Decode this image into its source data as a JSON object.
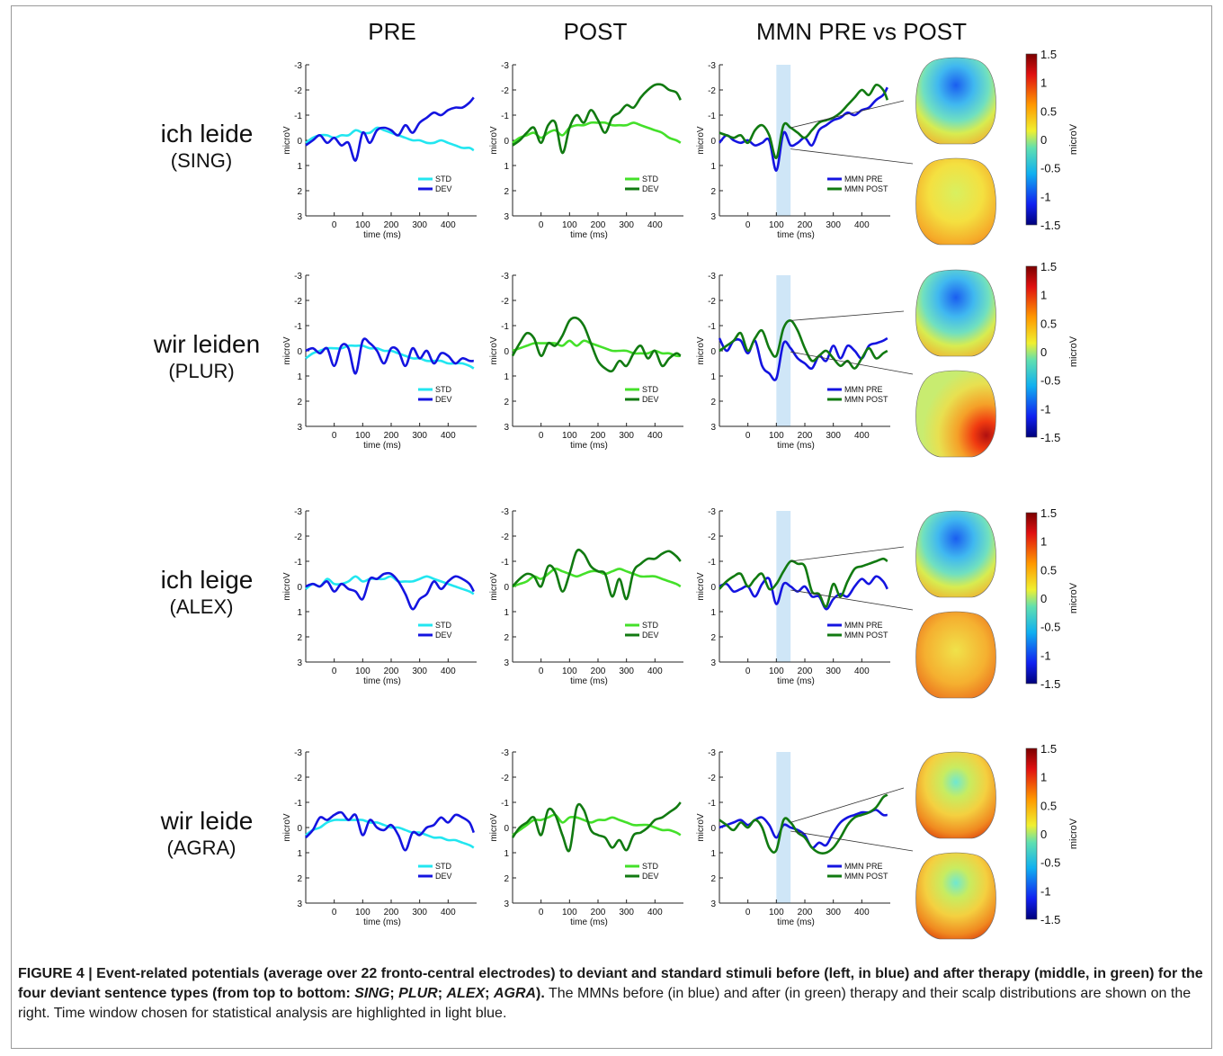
{
  "headers": {
    "pre": "PRE",
    "post": "POST",
    "mmn": "MMN PRE vs POST"
  },
  "rows": [
    {
      "label": "ich leide",
      "sub": "(SING)"
    },
    {
      "label": "wir leiden",
      "sub": "(PLUR)"
    },
    {
      "label": "ich leige",
      "sub": "(ALEX)"
    },
    {
      "label": "wir leide",
      "sub": "(AGRA)"
    }
  ],
  "axes": {
    "y_ticks": [
      "-3",
      "-2",
      "-1",
      "0",
      "1",
      "2",
      "3"
    ],
    "x_ticks": [
      "0",
      "100",
      "200",
      "300",
      "400"
    ],
    "xlabel": "time (ms)",
    "ylabel": "microV"
  },
  "legends": {
    "pre": [
      "STD",
      "DEV"
    ],
    "post": [
      "STD",
      "DEV"
    ],
    "mmn": [
      "MMN PRE",
      "MMN POST"
    ]
  },
  "colorbar": {
    "label": "microV",
    "ticks": [
      "1.5",
      "1",
      "0.5",
      "0",
      "-0.5",
      "-1",
      "-1.5"
    ]
  },
  "colors": {
    "std_pre": "#22e6f0",
    "dev_pre": "#1414e0",
    "std_post": "#44e02a",
    "dev_post": "#117a11",
    "window": "#cfe6f7"
  },
  "chart_data": {
    "type": "line",
    "xlim": [
      -100,
      500
    ],
    "ylim": [
      -3,
      3
    ],
    "y_inverted": true,
    "highlight_window_ms": [
      [
        100,
        150
      ],
      [
        100,
        150
      ],
      [
        100,
        150
      ],
      [
        100,
        150
      ]
    ],
    "x": [
      -100,
      -75,
      -50,
      -25,
      0,
      25,
      50,
      75,
      100,
      125,
      150,
      175,
      200,
      225,
      250,
      275,
      300,
      325,
      350,
      375,
      400,
      425,
      450,
      475,
      490
    ],
    "panels": [
      {
        "pre": [
          {
            "name": "STD",
            "values": [
              0.1,
              -0.1,
              -0.2,
              -0.2,
              -0.1,
              -0.2,
              -0.2,
              -0.4,
              -0.3,
              -0.3,
              -0.5,
              -0.4,
              -0.3,
              -0.2,
              -0.1,
              0.0,
              0.0,
              0.1,
              0.1,
              0.0,
              0.1,
              0.2,
              0.3,
              0.3,
              0.4
            ]
          },
          {
            "name": "DEV",
            "values": [
              0.2,
              0.0,
              -0.2,
              0.1,
              -0.1,
              0.2,
              0.1,
              0.8,
              -0.3,
              0.1,
              -0.4,
              -0.5,
              -0.4,
              -0.2,
              -0.6,
              -0.3,
              -0.7,
              -0.9,
              -1.1,
              -1.0,
              -1.2,
              -1.3,
              -1.3,
              -1.5,
              -1.7
            ]
          }
        ],
        "post": [
          {
            "name": "STD",
            "values": [
              0.1,
              -0.1,
              -0.2,
              -0.3,
              -0.1,
              -0.3,
              -0.4,
              -0.2,
              -0.5,
              -0.6,
              -0.6,
              -0.7,
              -0.7,
              -0.7,
              -0.6,
              -0.6,
              -0.6,
              -0.7,
              -0.6,
              -0.5,
              -0.4,
              -0.3,
              -0.1,
              0.0,
              0.1
            ]
          },
          {
            "name": "DEV",
            "values": [
              0.2,
              0.0,
              -0.3,
              -0.5,
              0.1,
              -0.6,
              -0.7,
              0.5,
              -0.5,
              -1.0,
              -0.7,
              -1.2,
              -0.8,
              -0.3,
              -0.9,
              -1.1,
              -1.4,
              -1.3,
              -1.7,
              -2.0,
              -2.2,
              -2.2,
              -2.0,
              -1.9,
              -1.6
            ]
          }
        ],
        "mmn": [
          {
            "name": "MMN PRE",
            "values": [
              0.1,
              -0.2,
              0.0,
              0.1,
              0.0,
              0.2,
              0.1,
              0.0,
              1.2,
              -0.3,
              0.2,
              0.1,
              -0.1,
              0.2,
              -0.4,
              -0.6,
              -0.8,
              -0.9,
              -1.1,
              -1.0,
              -1.2,
              -1.3,
              -1.6,
              -1.8,
              -2.1
            ]
          },
          {
            "name": "MMN POST",
            "values": [
              -0.3,
              -0.2,
              -0.1,
              -0.2,
              0.1,
              -0.4,
              -0.6,
              -0.2,
              0.7,
              -0.6,
              -0.5,
              -0.3,
              -0.1,
              -0.4,
              -0.7,
              -0.8,
              -0.9,
              -1.1,
              -1.4,
              -1.7,
              -2.0,
              -1.8,
              -2.2,
              -2.0,
              -1.6
            ]
          }
        ]
      },
      {
        "pre": [
          {
            "name": "STD",
            "values": [
              0.3,
              0.1,
              0.0,
              -0.1,
              -0.1,
              -0.1,
              -0.2,
              -0.2,
              -0.2,
              -0.1,
              -0.1,
              0.0,
              0.0,
              0.1,
              0.2,
              0.3,
              0.3,
              0.4,
              0.4,
              0.4,
              0.5,
              0.5,
              0.5,
              0.6,
              0.7
            ]
          },
          {
            "name": "DEV",
            "values": [
              0.0,
              -0.1,
              0.1,
              -0.1,
              0.6,
              -0.2,
              -0.1,
              0.9,
              -0.4,
              -0.3,
              0.0,
              0.5,
              -0.1,
              0.0,
              0.6,
              -0.1,
              0.3,
              0.0,
              0.5,
              0.1,
              0.2,
              0.5,
              0.3,
              0.4,
              0.4
            ]
          }
        ],
        "post": [
          {
            "name": "STD",
            "values": [
              0.0,
              -0.1,
              -0.2,
              -0.3,
              -0.3,
              -0.3,
              -0.3,
              -0.2,
              -0.4,
              -0.2,
              -0.4,
              -0.3,
              -0.2,
              -0.1,
              0.0,
              0.0,
              0.0,
              0.1,
              0.1,
              0.1,
              0.0,
              0.1,
              0.1,
              0.2,
              0.2
            ]
          },
          {
            "name": "DEV",
            "values": [
              0.2,
              -0.3,
              -0.7,
              -0.5,
              0.2,
              -0.3,
              -0.2,
              -0.6,
              -1.2,
              -1.3,
              -1.0,
              -0.3,
              0.4,
              0.7,
              0.8,
              0.4,
              0.6,
              0.1,
              -0.2,
              0.3,
              0.0,
              0.6,
              0.3,
              0.1,
              0.2
            ]
          }
        ],
        "mmn": [
          {
            "name": "MMN PRE",
            "values": [
              -0.5,
              0.0,
              -0.4,
              -0.4,
              0.1,
              -0.4,
              0.6,
              0.9,
              1.1,
              -0.3,
              -0.1,
              0.3,
              0.5,
              0.7,
              0.2,
              0.4,
              -0.2,
              0.3,
              -0.2,
              0.0,
              0.3,
              -0.2,
              -0.3,
              -0.4,
              -0.5
            ]
          },
          {
            "name": "MMN POST",
            "values": [
              0.0,
              -0.2,
              -0.4,
              -0.7,
              0.0,
              -0.5,
              -0.8,
              -0.1,
              0.2,
              -0.9,
              -1.2,
              -0.8,
              -0.1,
              0.4,
              0.2,
              0.0,
              0.3,
              0.6,
              0.4,
              0.7,
              0.3,
              -0.1,
              0.3,
              0.1,
              0.0
            ]
          }
        ]
      },
      {
        "pre": [
          {
            "name": "STD",
            "values": [
              0.1,
              -0.1,
              0.0,
              -0.3,
              -0.1,
              -0.1,
              -0.2,
              -0.4,
              -0.2,
              -0.3,
              -0.3,
              -0.3,
              -0.4,
              -0.2,
              -0.2,
              -0.2,
              -0.3,
              -0.4,
              -0.3,
              -0.2,
              -0.1,
              0.0,
              0.1,
              0.2,
              0.3
            ]
          },
          {
            "name": "DEV",
            "values": [
              0.0,
              -0.1,
              0.0,
              -0.2,
              0.2,
              -0.1,
              0.1,
              0.2,
              0.5,
              -0.3,
              -0.3,
              -0.5,
              -0.5,
              -0.2,
              0.3,
              0.9,
              0.5,
              0.3,
              -0.2,
              0.1,
              -0.2,
              -0.4,
              -0.3,
              -0.1,
              0.2
            ]
          }
        ],
        "post": [
          {
            "name": "STD",
            "values": [
              0.0,
              -0.1,
              -0.2,
              -0.4,
              -0.3,
              -0.5,
              -0.7,
              -0.6,
              -0.5,
              -0.4,
              -0.5,
              -0.6,
              -0.6,
              -0.5,
              -0.6,
              -0.7,
              -0.6,
              -0.5,
              -0.4,
              -0.4,
              -0.4,
              -0.3,
              -0.2,
              -0.1,
              0.0
            ]
          },
          {
            "name": "DEV",
            "values": [
              0.0,
              -0.3,
              -0.5,
              -0.4,
              0.0,
              -0.8,
              -0.6,
              0.2,
              -0.5,
              -1.4,
              -1.3,
              -0.8,
              -0.6,
              -0.5,
              0.4,
              -0.3,
              0.5,
              -0.6,
              -0.9,
              -1.1,
              -1.1,
              -1.3,
              -1.4,
              -1.2,
              -1.0
            ]
          }
        ],
        "mmn": [
          {
            "name": "MMN PRE",
            "values": [
              0.0,
              -0.1,
              0.2,
              0.1,
              0.0,
              0.4,
              -0.1,
              -0.3,
              0.7,
              -0.1,
              0.0,
              0.2,
              0.0,
              0.4,
              0.4,
              0.9,
              0.5,
              0.3,
              0.4,
              0.0,
              -0.3,
              -0.1,
              -0.4,
              -0.2,
              0.1
            ]
          },
          {
            "name": "MMN POST",
            "values": [
              0.1,
              -0.2,
              -0.4,
              -0.5,
              0.0,
              -0.3,
              -0.5,
              0.1,
              -0.1,
              -0.6,
              -1.0,
              -0.9,
              -0.8,
              0.2,
              0.3,
              0.8,
              -0.1,
              0.4,
              -0.2,
              -0.7,
              -0.8,
              -0.9,
              -1.0,
              -1.1,
              -1.0
            ]
          }
        ]
      },
      {
        "pre": [
          {
            "name": "STD",
            "values": [
              0.3,
              0.1,
              0.0,
              -0.2,
              -0.3,
              -0.3,
              -0.3,
              -0.3,
              -0.3,
              -0.2,
              -0.2,
              -0.1,
              0.0,
              0.0,
              0.1,
              0.2,
              0.2,
              0.3,
              0.4,
              0.4,
              0.5,
              0.5,
              0.6,
              0.7,
              0.8
            ]
          },
          {
            "name": "DEV",
            "values": [
              0.4,
              0.1,
              -0.4,
              -0.3,
              -0.5,
              -0.6,
              -0.3,
              -0.5,
              0.3,
              -0.3,
              0.0,
              0.1,
              -0.1,
              0.3,
              0.9,
              0.2,
              0.3,
              0.0,
              -0.1,
              -0.4,
              -0.2,
              -0.5,
              -0.4,
              -0.2,
              0.2
            ]
          }
        ],
        "post": [
          {
            "name": "STD",
            "values": [
              0.3,
              0.1,
              -0.1,
              -0.3,
              -0.3,
              -0.4,
              -0.5,
              -0.2,
              -0.4,
              -0.4,
              -0.3,
              -0.2,
              -0.3,
              -0.3,
              -0.4,
              -0.3,
              -0.2,
              -0.1,
              -0.1,
              -0.1,
              0.0,
              0.1,
              0.1,
              0.2,
              0.3
            ]
          },
          {
            "name": "DEV",
            "values": [
              0.4,
              0.0,
              -0.2,
              -0.4,
              0.3,
              -0.7,
              -0.5,
              0.3,
              0.9,
              -0.8,
              -0.7,
              0.1,
              0.3,
              0.4,
              0.8,
              0.5,
              0.9,
              0.3,
              0.2,
              0.0,
              -0.3,
              -0.4,
              -0.6,
              -0.8,
              -1.0
            ]
          }
        ],
        "mmn": [
          {
            "name": "MMN PRE",
            "values": [
              0.0,
              -0.1,
              -0.2,
              -0.3,
              -0.1,
              -0.3,
              -0.4,
              -0.1,
              0.4,
              -0.1,
              0.0,
              0.1,
              0.3,
              0.8,
              0.6,
              0.7,
              0.2,
              -0.2,
              -0.4,
              -0.5,
              -0.6,
              -0.6,
              -0.7,
              -0.5,
              -0.5
            ]
          },
          {
            "name": "MMN POST",
            "values": [
              -0.3,
              -0.1,
              0.1,
              -0.2,
              0.0,
              -0.3,
              0.0,
              0.8,
              0.9,
              -0.3,
              -0.2,
              0.2,
              0.4,
              0.8,
              1.0,
              1.0,
              0.8,
              0.4,
              -0.1,
              -0.4,
              -0.5,
              -0.6,
              -0.8,
              -1.2,
              -1.3
            ]
          }
        ]
      }
    ]
  },
  "caption": {
    "label": "FIGURE 4",
    "bold_lead": "Event-related potentials (average over 22 fronto-central electrodes) to deviant and standard stimuli before (left, in blue) and after therapy (middle, in green) for the four deviant sentence types (from top to bottom: ",
    "t1": "SING",
    "sep1": "; ",
    "t2": "PLUR",
    "sep2": "; ",
    "t3": "ALEX",
    "sep3": "; ",
    "t4": "AGRA",
    "bold_end": ").",
    "body": " The MMNs before (in blue) and after (in green) therapy and their scalp distributions are shown on the right. Time window chosen for statistical analysis are highlighted in light blue."
  }
}
